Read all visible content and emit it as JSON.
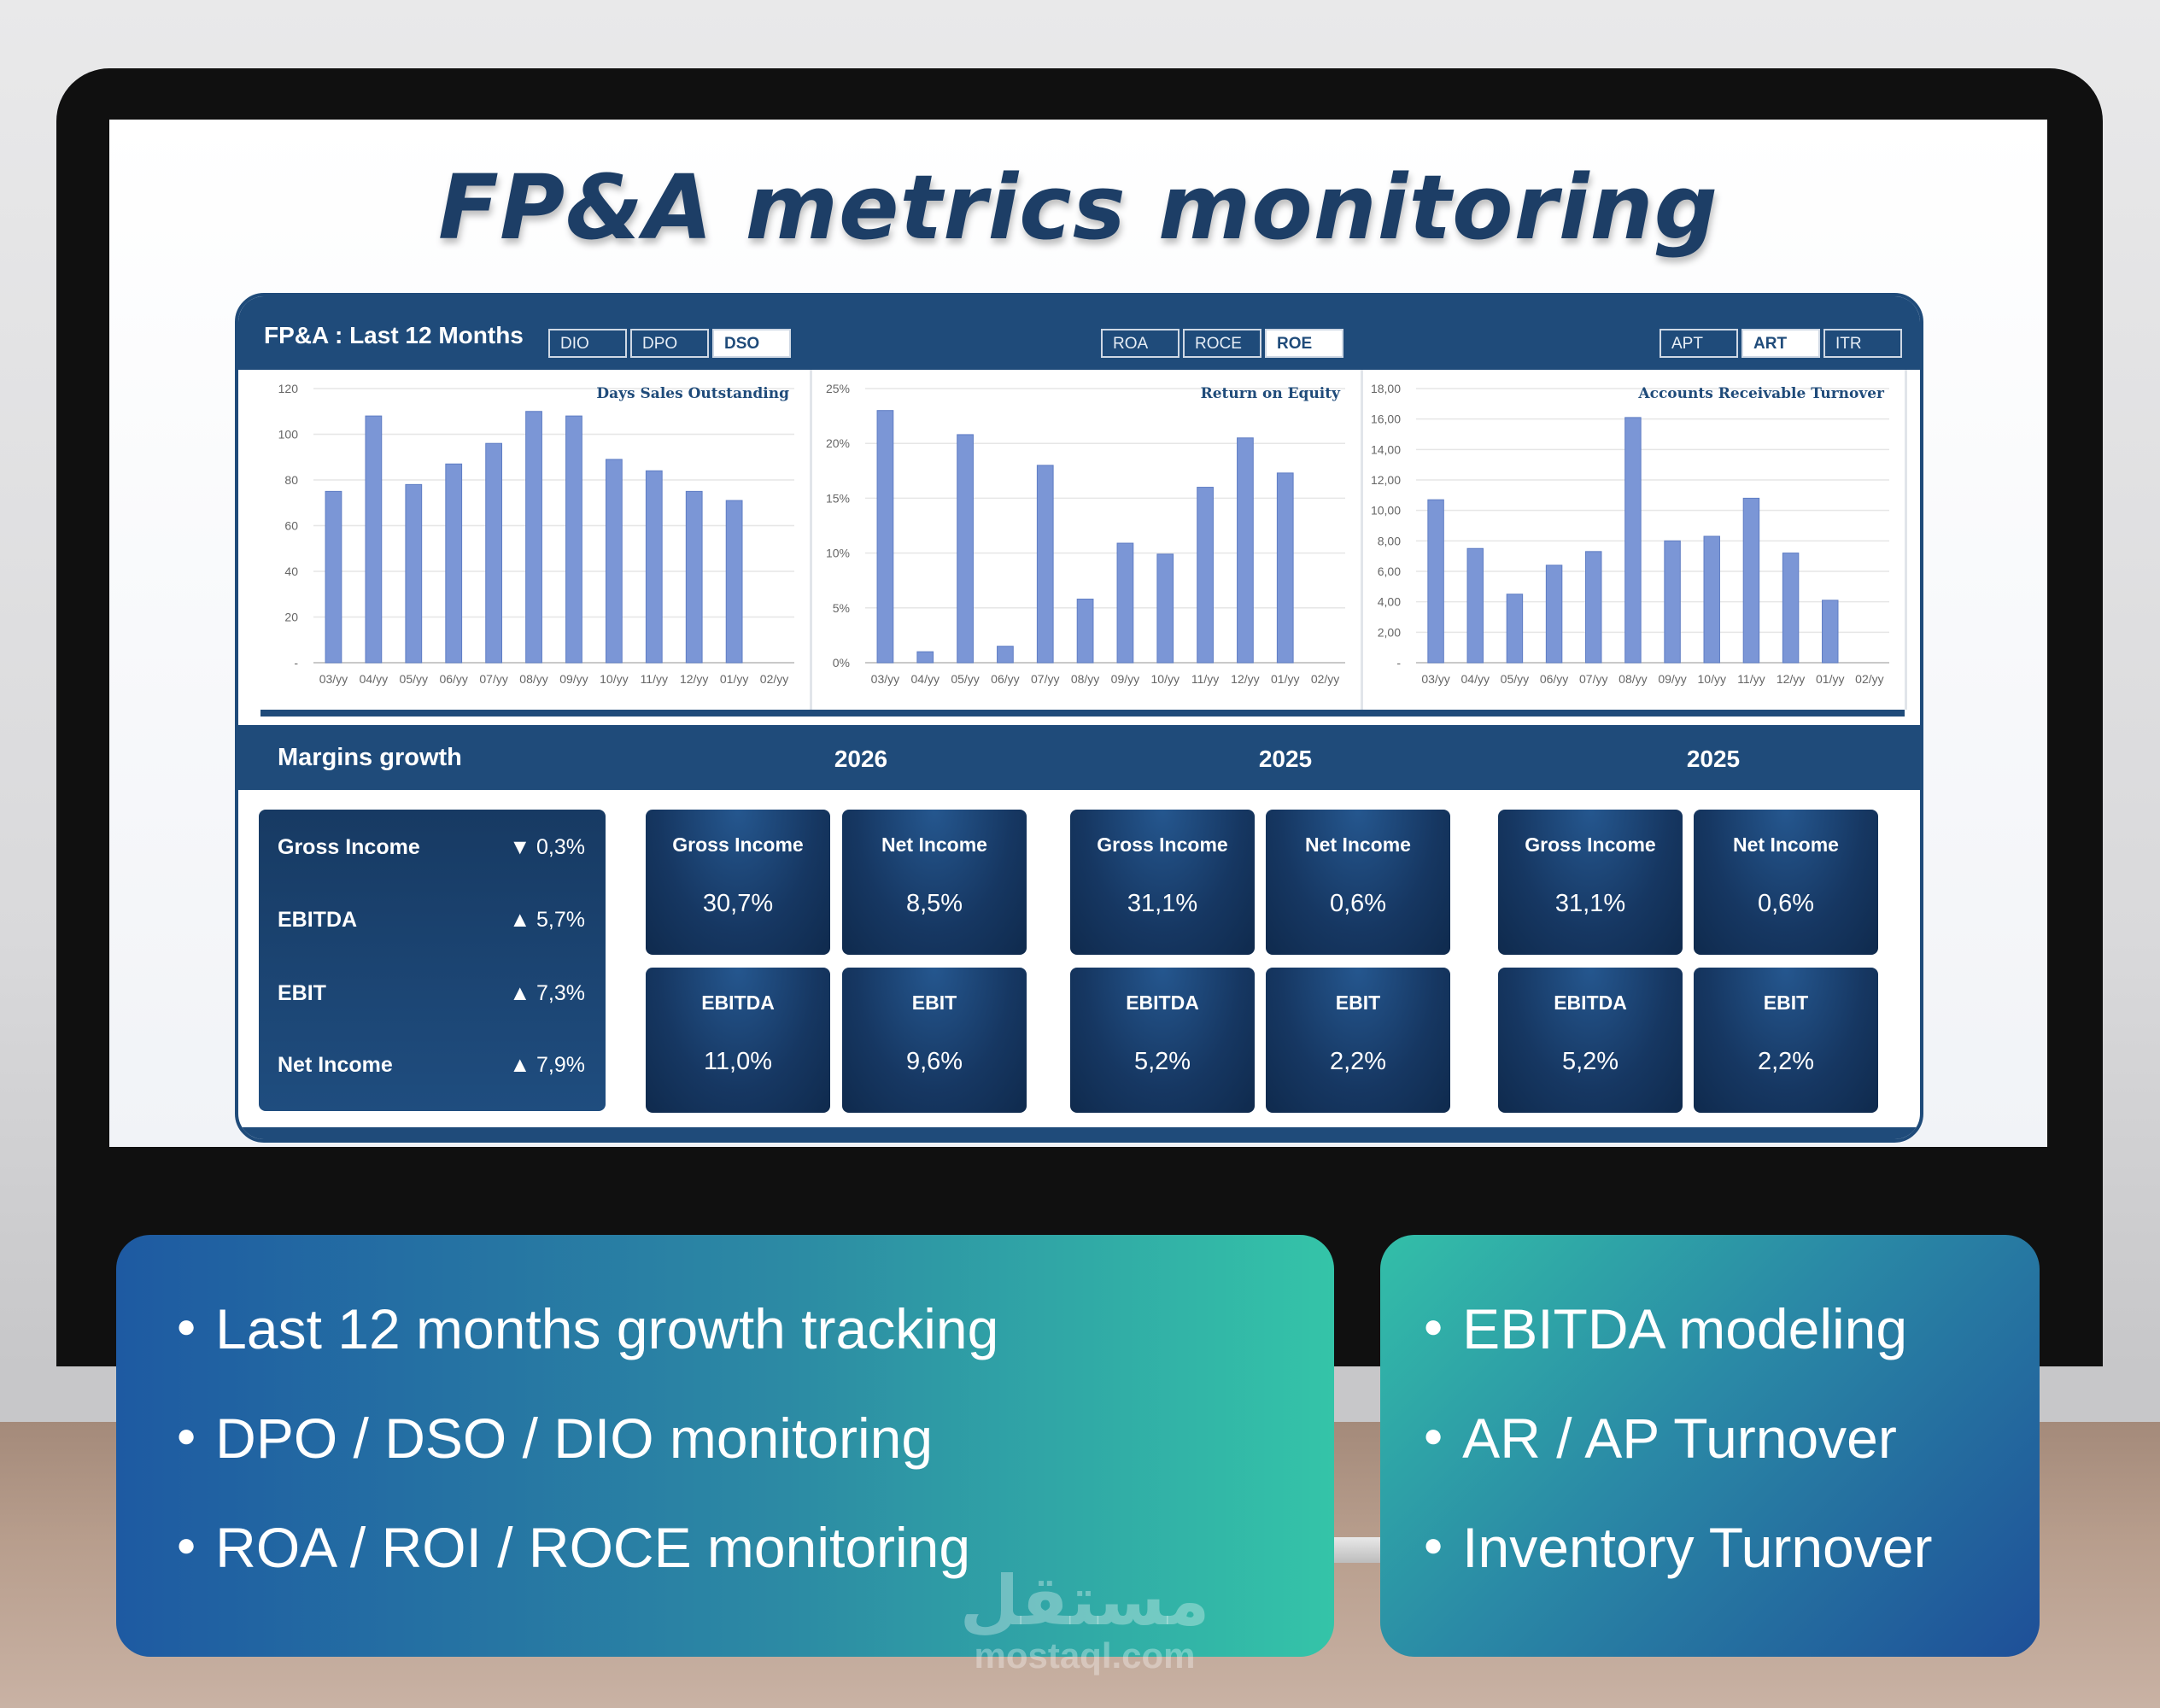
{
  "page": {
    "title": "FP&A metrics monitoring",
    "watermark_arabic": "مستقل",
    "watermark_latin": "mostaql.com"
  },
  "dashboard": {
    "title": "FP&A : Last 12 Months",
    "button_groups": [
      {
        "buttons": [
          "DIO",
          "DPO",
          "DSO"
        ],
        "active": "DSO"
      },
      {
        "buttons": [
          "ROA",
          "ROCE",
          "ROE"
        ],
        "active": "ROE"
      },
      {
        "buttons": [
          "APT",
          "ART",
          "ITR"
        ],
        "active": "ART"
      }
    ]
  },
  "chart_data": [
    {
      "type": "bar",
      "title": "Days Sales Outstanding",
      "categories": [
        "03/yy",
        "04/yy",
        "05/yy",
        "06/yy",
        "07/yy",
        "08/yy",
        "09/yy",
        "10/yy",
        "11/yy",
        "12/yy",
        "01/yy",
        "02/yy"
      ],
      "values": [
        75,
        108,
        78,
        87,
        96,
        110,
        108,
        89,
        84,
        75,
        71,
        0
      ],
      "ylim": [
        0,
        120
      ],
      "yticks": [
        "120",
        "100",
        "80",
        "60",
        "40",
        "20",
        "-"
      ],
      "ytick_values": [
        120,
        100,
        80,
        60,
        40,
        20,
        0
      ],
      "color": "#7b96d6"
    },
    {
      "type": "bar",
      "title": "Return on Equity",
      "categories": [
        "03/yy",
        "04/yy",
        "05/yy",
        "06/yy",
        "07/yy",
        "08/yy",
        "09/yy",
        "10/yy",
        "11/yy",
        "12/yy",
        "01/yy",
        "02/yy"
      ],
      "values": [
        23,
        1,
        20.8,
        1.5,
        18,
        5.8,
        10.9,
        9.9,
        16,
        20.5,
        17.3,
        0
      ],
      "ylim": [
        0,
        25
      ],
      "yticks": [
        "25%",
        "20%",
        "15%",
        "10%",
        "5%",
        "0%"
      ],
      "ytick_values": [
        25,
        20,
        15,
        10,
        5,
        0
      ],
      "color": "#7b96d6"
    },
    {
      "type": "bar",
      "title": "Accounts Receivable Turnover",
      "categories": [
        "03/yy",
        "04/yy",
        "05/yy",
        "06/yy",
        "07/yy",
        "08/yy",
        "09/yy",
        "10/yy",
        "11/yy",
        "12/yy",
        "01/yy",
        "02/yy"
      ],
      "values": [
        10.7,
        7.5,
        4.5,
        6.4,
        7.3,
        16.1,
        8.0,
        8.3,
        10.8,
        7.2,
        4.1,
        0
      ],
      "ylim": [
        0,
        18
      ],
      "yticks": [
        "18,00",
        "16,00",
        "14,00",
        "12,00",
        "10,00",
        "8,00",
        "6,00",
        "4,00",
        "2,00",
        "-"
      ],
      "ytick_values": [
        18,
        16,
        14,
        12,
        10,
        8,
        6,
        4,
        2,
        0
      ],
      "color": "#7b96d6"
    }
  ],
  "margins": {
    "title": "Margins growth",
    "years": [
      "2026",
      "2025",
      "2025"
    ],
    "summary": [
      {
        "label": "Gross  Income",
        "arrow": "▼",
        "value": "0,3%"
      },
      {
        "label": "EBITDA",
        "arrow": "▲",
        "value": "5,7%"
      },
      {
        "label": "EBIT",
        "arrow": "▲",
        "value": "7,3%"
      },
      {
        "label": "Net Income",
        "arrow": "▲",
        "value": "7,9%"
      }
    ],
    "groups": [
      {
        "cards": [
          {
            "label": "Gross Income",
            "value": "30,7%"
          },
          {
            "label": "Net Income",
            "value": "8,5%"
          },
          {
            "label": "EBITDA",
            "value": "11,0%"
          },
          {
            "label": "EBIT",
            "value": "9,6%"
          }
        ]
      },
      {
        "cards": [
          {
            "label": "Gross Income",
            "value": "31,1%"
          },
          {
            "label": "Net Income",
            "value": "0,6%"
          },
          {
            "label": "EBITDA",
            "value": "5,2%"
          },
          {
            "label": "EBIT",
            "value": "2,2%"
          }
        ]
      },
      {
        "cards": [
          {
            "label": "Gross Income",
            "value": "31,1%"
          },
          {
            "label": "Net Income",
            "value": "0,6%"
          },
          {
            "label": "EBITDA",
            "value": "5,2%"
          },
          {
            "label": "EBIT",
            "value": "2,2%"
          }
        ]
      }
    ]
  },
  "features": {
    "left": [
      "Last 12 months growth tracking",
      "DPO / DSO / DIO monitoring",
      "ROA / ROI / ROCE monitoring"
    ],
    "right": [
      "EBITDA modeling",
      "AR / AP Turnover",
      "Inventory Turnover"
    ]
  },
  "colors": {
    "navy": "#1f4b7a",
    "bar": "#7b96d6",
    "title": "#1d3e66"
  }
}
